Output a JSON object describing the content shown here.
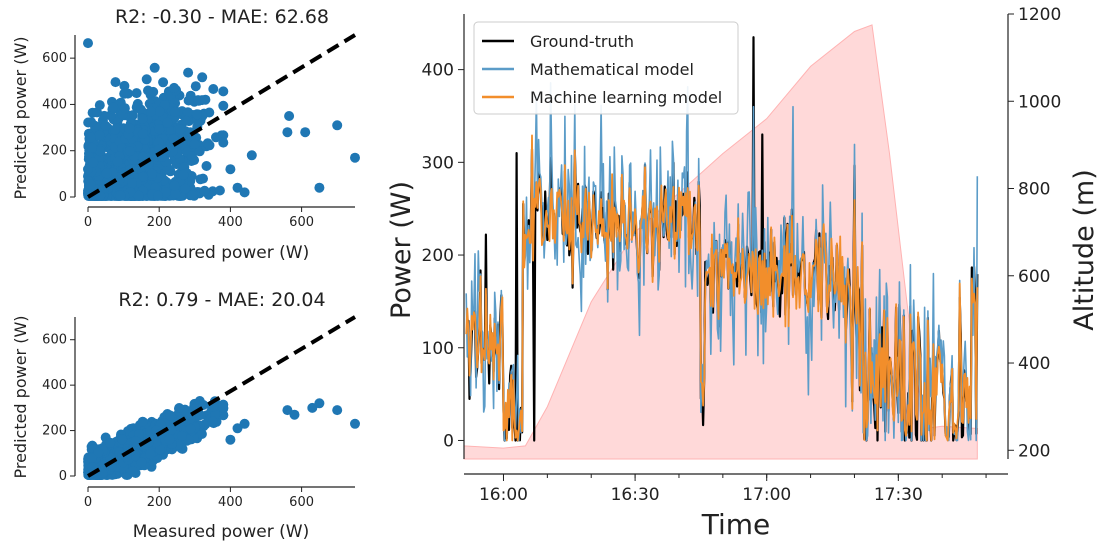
{
  "chart_data": [
    {
      "type": "scatter",
      "title": "R2: -0.30 - MAE: 62.68",
      "xlabel": "Measured power (W)",
      "ylabel": "Predicted power (W)",
      "xlim": [
        0,
        750
      ],
      "ylim": [
        0,
        700
      ],
      "xticks": [
        "0",
        "200",
        "400",
        "600"
      ],
      "yticks": [
        "0",
        "200",
        "400",
        "600"
      ],
      "point_color": "#1f77b4",
      "reference_line": {
        "x": [
          0,
          750
        ],
        "y": [
          0,
          750
        ]
      },
      "outliers": [
        {
          "x": 0,
          "y": 665
        },
        {
          "x": 560,
          "y": 280
        },
        {
          "x": 565,
          "y": 350
        },
        {
          "x": 610,
          "y": 280
        },
        {
          "x": 650,
          "y": 40
        },
        {
          "x": 700,
          "y": 310
        },
        {
          "x": 750,
          "y": 170
        },
        {
          "x": 440,
          "y": 20
        },
        {
          "x": 460,
          "y": 180
        },
        {
          "x": 420,
          "y": 40
        },
        {
          "x": 400,
          "y": 120
        }
      ]
    },
    {
      "type": "scatter",
      "title": "R2: 0.79 - MAE: 20.04",
      "xlabel": "Measured power (W)",
      "ylabel": "Predicted power (W)",
      "xlim": [
        0,
        750
      ],
      "ylim": [
        0,
        700
      ],
      "xticks": [
        "0",
        "200",
        "400",
        "600"
      ],
      "yticks": [
        "0",
        "200",
        "400",
        "600"
      ],
      "point_color": "#1f77b4",
      "reference_line": {
        "x": [
          0,
          750
        ],
        "y": [
          0,
          750
        ]
      },
      "outliers": [
        {
          "x": 560,
          "y": 290
        },
        {
          "x": 580,
          "y": 270
        },
        {
          "x": 630,
          "y": 300
        },
        {
          "x": 650,
          "y": 320
        },
        {
          "x": 700,
          "y": 290
        },
        {
          "x": 750,
          "y": 230
        },
        {
          "x": 420,
          "y": 210
        },
        {
          "x": 440,
          "y": 230
        },
        {
          "x": 400,
          "y": 160
        }
      ]
    },
    {
      "type": "line",
      "xlabel": "Time",
      "ylabel": "Power (W)",
      "y2label": "Altitude (m)",
      "xlim": [
        "15:51",
        "17:55"
      ],
      "ylim": [
        -20,
        460
      ],
      "y2lim": [
        180,
        1200
      ],
      "xticks": [
        "16:00",
        "16:30",
        "17:00",
        "17:30"
      ],
      "yticks": [
        "0",
        "100",
        "200",
        "300",
        "400"
      ],
      "y2ticks": [
        "200",
        "400",
        "600",
        "800",
        "1000",
        "1200"
      ],
      "legend_position": "top-left",
      "altitude_color": "#ffcccc",
      "altitude": {
        "x": [
          "15:51",
          "16:00",
          "16:05",
          "16:10",
          "16:20",
          "16:30",
          "16:40",
          "16:50",
          "17:00",
          "17:10",
          "17:20",
          "17:24",
          "17:28",
          "17:33",
          "17:36",
          "17:40",
          "17:48"
        ],
        "y": [
          210,
          205,
          210,
          300,
          540,
          700,
          790,
          880,
          960,
          1080,
          1160,
          1175,
          880,
          450,
          250,
          255,
          250
        ]
      },
      "series": [
        {
          "name": "Ground-truth",
          "color": "#000000"
        },
        {
          "name": "Mathematical model",
          "color": "#5b9cc8"
        },
        {
          "name": "Machine learning model",
          "color": "#f28e2b"
        }
      ]
    }
  ]
}
